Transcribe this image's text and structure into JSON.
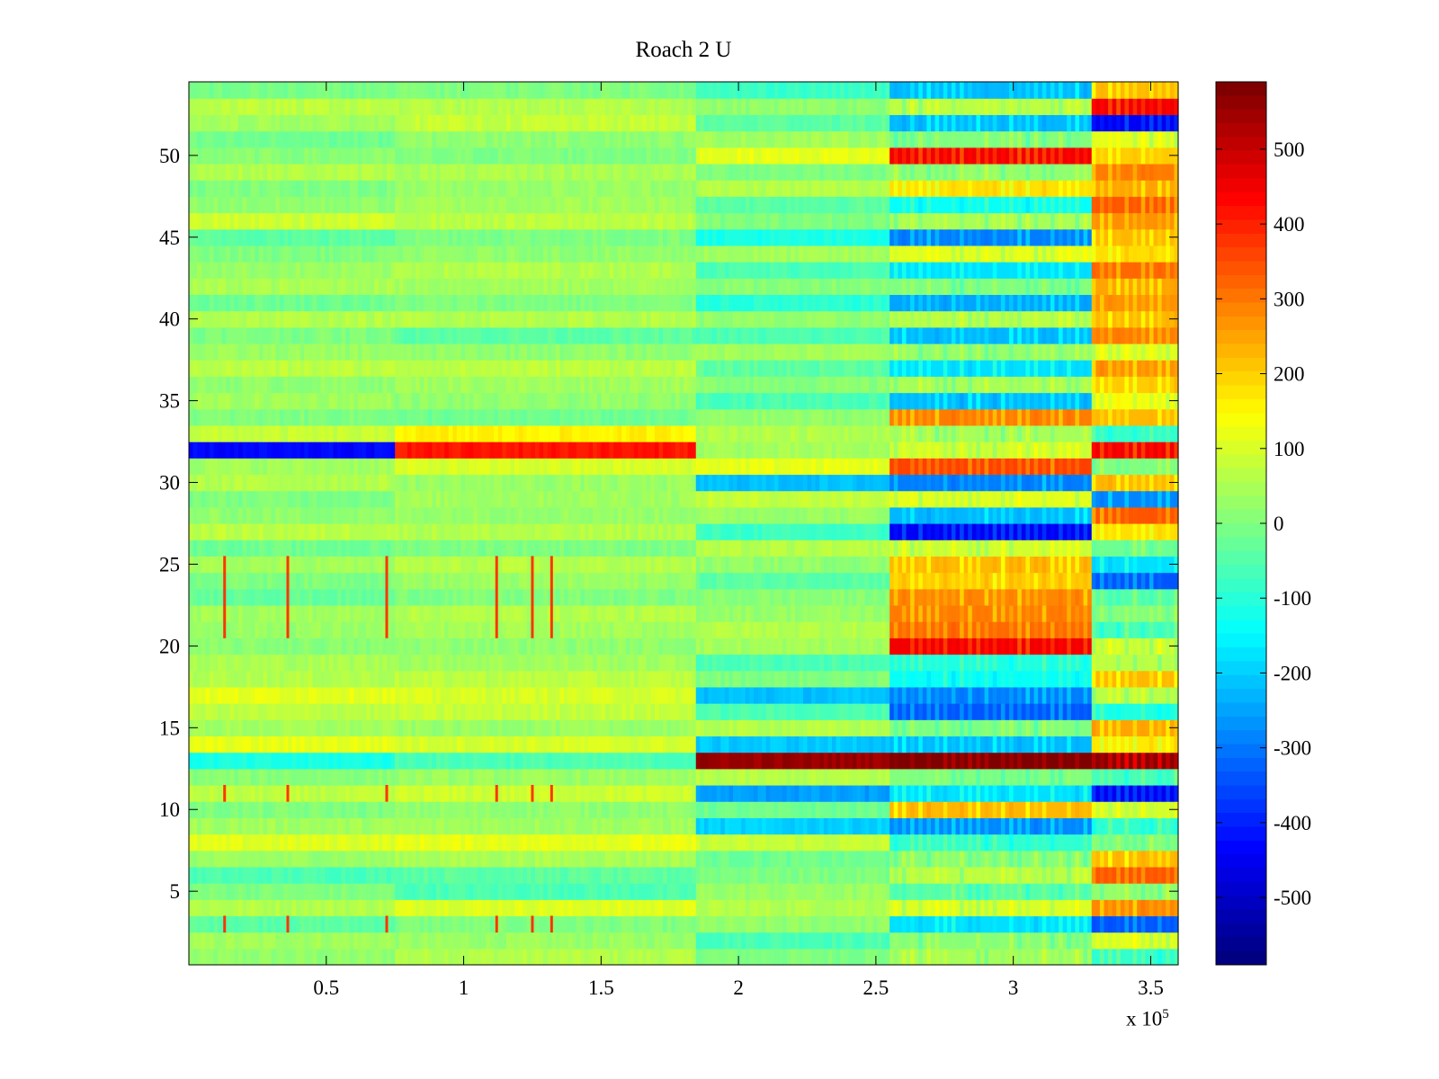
{
  "chart_data": {
    "type": "heatmap",
    "title": "Roach 2 U",
    "xlabel": "",
    "ylabel": "",
    "x_range": [
      0,
      360000
    ],
    "y_range": [
      0.5,
      54.5
    ],
    "x_multiplier_label": {
      "text": "x 10",
      "exponent": "5"
    },
    "x_ticks": [
      {
        "value": 0.5,
        "label": "0.5"
      },
      {
        "value": 1,
        "label": "1"
      },
      {
        "value": 1.5,
        "label": "1.5"
      },
      {
        "value": 2,
        "label": "2"
      },
      {
        "value": 2.5,
        "label": "2.5"
      },
      {
        "value": 3,
        "label": "3"
      },
      {
        "value": 3.5,
        "label": "3.5"
      }
    ],
    "y_ticks": [
      {
        "value": 5,
        "label": "5"
      },
      {
        "value": 10,
        "label": "10"
      },
      {
        "value": 15,
        "label": "15"
      },
      {
        "value": 20,
        "label": "20"
      },
      {
        "value": 25,
        "label": "25"
      },
      {
        "value": 30,
        "label": "30"
      },
      {
        "value": 35,
        "label": "35"
      },
      {
        "value": 40,
        "label": "40"
      },
      {
        "value": 45,
        "label": "45"
      },
      {
        "value": 50,
        "label": "50"
      }
    ],
    "colorbar": {
      "colormap": "jet",
      "range": [
        -590,
        590
      ],
      "ticks": [
        {
          "value": 500,
          "label": "500"
        },
        {
          "value": 400,
          "label": "400"
        },
        {
          "value": 300,
          "label": "300"
        },
        {
          "value": 200,
          "label": "200"
        },
        {
          "value": 100,
          "label": "100"
        },
        {
          "value": 0,
          "label": "0"
        },
        {
          "value": -100,
          "label": "-100"
        },
        {
          "value": -200,
          "label": "-200"
        },
        {
          "value": -300,
          "label": "-300"
        },
        {
          "value": -400,
          "label": "-400"
        },
        {
          "value": -500,
          "label": "-500"
        }
      ]
    },
    "rows": 54,
    "segments_x": [
      0,
      75000,
      185000,
      255000,
      328000,
      360000
    ],
    "segment_means": [
      [
        20,
        60,
        0,
        40,
        -80
      ],
      [
        40,
        30,
        -60,
        10,
        100
      ],
      [
        -40,
        0,
        20,
        -160,
        -300
      ],
      [
        60,
        110,
        60,
        90,
        250
      ],
      [
        0,
        -60,
        30,
        -40,
        20
      ],
      [
        -60,
        -40,
        0,
        60,
        300
      ],
      [
        30,
        50,
        -20,
        10,
        200
      ],
      [
        110,
        120,
        80,
        -80,
        0
      ],
      [
        40,
        40,
        -200,
        -250,
        -80
      ],
      [
        0,
        20,
        -20,
        200,
        80
      ],
      [
        70,
        90,
        -260,
        -160,
        -400
      ],
      [
        10,
        30,
        60,
        0,
        -60
      ],
      [
        -120,
        -60,
        560,
        580,
        500
      ],
      [
        120,
        100,
        -210,
        -200,
        150
      ],
      [
        40,
        30,
        60,
        0,
        220
      ],
      [
        70,
        80,
        -60,
        -300,
        -100
      ],
      [
        120,
        100,
        -220,
        -260,
        60
      ],
      [
        60,
        70,
        0,
        -120,
        200
      ],
      [
        50,
        40,
        -60,
        -100,
        60
      ],
      [
        10,
        20,
        40,
        400,
        80
      ],
      [
        30,
        40,
        60,
        280,
        -60
      ],
      [
        40,
        60,
        30,
        260,
        0
      ],
      [
        -30,
        0,
        10,
        250,
        -40
      ],
      [
        0,
        30,
        -40,
        180,
        -300
      ],
      [
        40,
        60,
        20,
        200,
        -160
      ],
      [
        -20,
        0,
        60,
        80,
        -20
      ],
      [
        70,
        60,
        -80,
        -400,
        160
      ],
      [
        20,
        30,
        30,
        -200,
        300
      ],
      [
        0,
        40,
        80,
        100,
        -250
      ],
      [
        60,
        30,
        -220,
        -260,
        200
      ],
      [
        40,
        100,
        120,
        320,
        0
      ],
      [
        -440,
        420,
        40,
        80,
        400
      ],
      [
        80,
        160,
        60,
        40,
        -80
      ],
      [
        0,
        -20,
        20,
        260,
        200
      ],
      [
        40,
        20,
        -60,
        -200,
        120
      ],
      [
        20,
        40,
        10,
        40,
        180
      ],
      [
        70,
        70,
        -40,
        -160,
        240
      ],
      [
        30,
        20,
        40,
        20,
        100
      ],
      [
        0,
        -40,
        -60,
        -200,
        260
      ],
      [
        60,
        60,
        20,
        60,
        200
      ],
      [
        -20,
        0,
        -100,
        -220,
        240
      ],
      [
        50,
        40,
        10,
        0,
        220
      ],
      [
        30,
        60,
        -60,
        -160,
        280
      ],
      [
        0,
        20,
        40,
        100,
        160
      ],
      [
        -40,
        0,
        -120,
        -260,
        200
      ],
      [
        90,
        70,
        0,
        40,
        240
      ],
      [
        20,
        40,
        -40,
        -120,
        300
      ],
      [
        0,
        30,
        60,
        160,
        220
      ],
      [
        60,
        50,
        0,
        20,
        260
      ],
      [
        10,
        0,
        120,
        400,
        180
      ],
      [
        -20,
        20,
        40,
        0,
        100
      ],
      [
        40,
        80,
        -40,
        -200,
        -400
      ],
      [
        70,
        60,
        20,
        60,
        400
      ],
      [
        -10,
        0,
        -80,
        -200,
        200
      ]
    ],
    "spike_columns_x": [
      13000,
      36000,
      72000,
      112000,
      125000,
      132000
    ],
    "spike_rows": [
      3,
      11,
      21,
      22,
      23,
      24,
      25
    ],
    "spike_value": 380
  }
}
